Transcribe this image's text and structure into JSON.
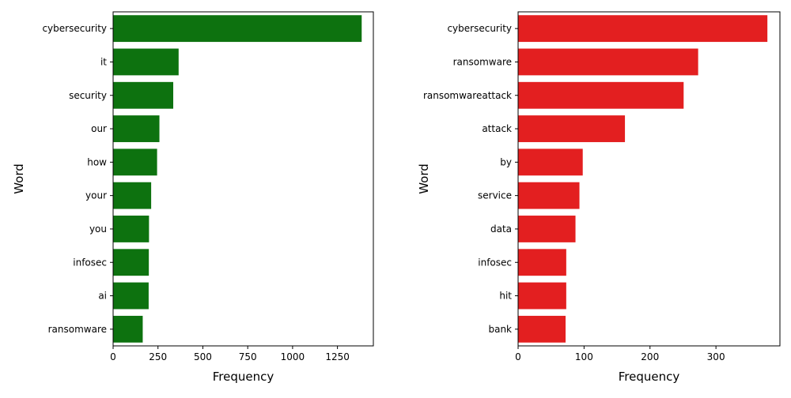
{
  "chart_data": [
    {
      "type": "bar",
      "orientation": "horizontal",
      "title": "",
      "xlabel": "Frequency",
      "ylabel": "Word",
      "categories": [
        "cybersecurity",
        "it",
        "security",
        "our",
        "how",
        "your",
        "you",
        "infosec",
        "ai",
        "ransomware"
      ],
      "values": [
        1385,
        365,
        335,
        258,
        245,
        212,
        200,
        199,
        198,
        165
      ],
      "xlim": [
        0,
        1450
      ],
      "xticks": [
        0,
        250,
        500,
        750,
        1000,
        1250
      ],
      "xtick_labels": [
        "0",
        "250",
        "500",
        "750",
        "1000",
        "1250"
      ],
      "color": "#0d720f",
      "grid": false,
      "legend": false
    },
    {
      "type": "bar",
      "orientation": "horizontal",
      "title": "",
      "xlabel": "Frequency",
      "ylabel": "Word",
      "categories": [
        "cybersecurity",
        "ransomware",
        "ransomwareattack",
        "attack",
        "by",
        "service",
        "data",
        "infosec",
        "hit",
        "bank"
      ],
      "values": [
        378,
        273,
        251,
        162,
        98,
        93,
        87,
        73,
        73,
        72
      ],
      "xlim": [
        0,
        397
      ],
      "xticks": [
        0,
        100,
        200,
        300
      ],
      "xtick_labels": [
        "0",
        "100",
        "200",
        "300"
      ],
      "color": "#e31f20",
      "grid": false,
      "legend": false
    }
  ]
}
